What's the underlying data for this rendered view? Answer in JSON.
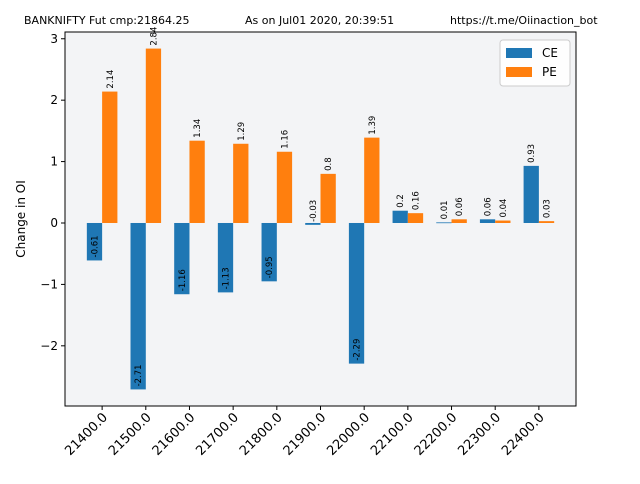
{
  "header": {
    "left": "BANKNIFTY Fut cmp:21864.25",
    "center": "As on Jul01 2020, 20:39:51",
    "right": "https://t.me/Oiinaction_bot"
  },
  "chart_data": {
    "type": "bar",
    "title": "",
    "xlabel": "",
    "ylabel": "Change in OI",
    "categories": [
      "21400.0",
      "21500.0",
      "21600.0",
      "21700.0",
      "21800.0",
      "21900.0",
      "22000.0",
      "22100.0",
      "22200.0",
      "22300.0",
      "22400.0"
    ],
    "series": [
      {
        "name": "CE",
        "color": "#1f77b4",
        "values": [
          -0.61,
          -2.71,
          -1.16,
          -1.13,
          -0.95,
          -0.03,
          -2.29,
          0.2,
          0.01,
          0.06,
          0.93
        ],
        "labels": [
          "-0.61",
          "-2.71",
          "-1.16",
          "-1.13",
          "-0.95",
          "-0.03",
          "-2.29",
          "0.2",
          "0.01",
          "0.06",
          "0.93"
        ]
      },
      {
        "name": "PE",
        "color": "#ff7f0e",
        "values": [
          2.14,
          2.84,
          1.34,
          1.29,
          1.16,
          0.8,
          1.39,
          0.16,
          0.06,
          0.04,
          0.03
        ],
        "labels": [
          "2.14",
          "2.84",
          "1.34",
          "1.29",
          "1.16",
          "0.8",
          "1.39",
          "0.16",
          "0.06",
          "0.04",
          "0.03"
        ]
      }
    ],
    "ylim": [
      -2.98,
      3.11
    ],
    "yticks": [
      -2,
      -1,
      0,
      1,
      2,
      3
    ],
    "ytick_labels": [
      "−2",
      "−1",
      "0",
      "1",
      "2",
      "3"
    ],
    "plot_background": "#f3f4f6",
    "grid": false,
    "legend_position": "top-right"
  }
}
